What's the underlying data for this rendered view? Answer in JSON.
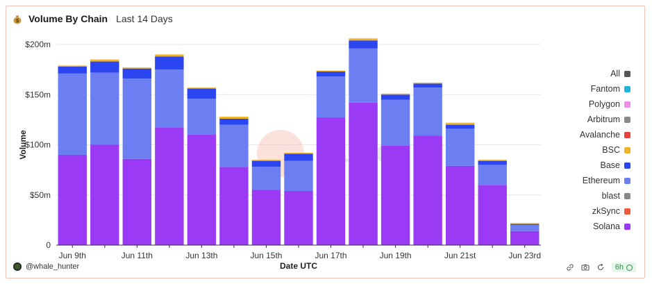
{
  "header": {
    "title": "Volume By Chain",
    "subtitle": "Last 14 Days",
    "icon": "money-bag-icon"
  },
  "watermark": "Dune",
  "author": "@whale_hunter",
  "refresh_badge": "6h",
  "legend": [
    {
      "label": "All",
      "color": "#555555"
    },
    {
      "label": "Fantom",
      "color": "#1fb4d8"
    },
    {
      "label": "Polygon",
      "color": "#ee8de6"
    },
    {
      "label": "Arbitrum",
      "color": "#8a8a8a"
    },
    {
      "label": "Avalanche",
      "color": "#e8413b"
    },
    {
      "label": "BSC",
      "color": "#f0b323"
    },
    {
      "label": "Base",
      "color": "#2b45f0"
    },
    {
      "label": "Ethereum",
      "color": "#6b7ff2"
    },
    {
      "label": "blast",
      "color": "#888888"
    },
    {
      "label": "zkSync",
      "color": "#ee5a3c"
    },
    {
      "label": "Solana",
      "color": "#9a3af5"
    }
  ],
  "chart_data": {
    "type": "bar",
    "stacked": true,
    "xlabel": "Date UTC",
    "ylabel": "Volume",
    "ylim": [
      0,
      200000000
    ],
    "y_ticks": [
      "0",
      "$50m",
      "$100m",
      "$150m",
      "$200m"
    ],
    "x_ticks": [
      "Jun 9th",
      "Jun 11th",
      "Jun 13th",
      "Jun 15th",
      "Jun 17th",
      "Jun 19th",
      "Jun 21st",
      "Jun 23rd"
    ],
    "categories": [
      "Jun 9th",
      "Jun 10th",
      "Jun 11th",
      "Jun 12th",
      "Jun 13th",
      "Jun 14th",
      "Jun 15th",
      "Jun 16th",
      "Jun 17th",
      "Jun 18th",
      "Jun 19th",
      "Jun 20th",
      "Jun 21st",
      "Jun 22nd",
      "Jun 23rd"
    ],
    "series": [
      {
        "name": "Solana",
        "color": "#9a3af5",
        "values": [
          90,
          100,
          86,
          117,
          110,
          78,
          55,
          54,
          127,
          142,
          99,
          109,
          79,
          60,
          14
        ]
      },
      {
        "name": "Ethereum",
        "color": "#6b7ff2",
        "values": [
          81,
          72,
          80,
          58,
          36,
          42,
          23,
          30,
          41,
          54,
          46,
          48,
          37,
          20,
          6
        ]
      },
      {
        "name": "Base",
        "color": "#2b45f0",
        "values": [
          7,
          11,
          10,
          13,
          10,
          6,
          6,
          7,
          5,
          8,
          5,
          4,
          4,
          4,
          1
        ]
      },
      {
        "name": "BSC",
        "color": "#f0b323",
        "values": [
          1,
          2,
          1,
          2,
          1,
          2,
          1,
          1,
          1,
          2,
          1,
          1,
          2,
          1,
          1
        ]
      }
    ],
    "grid": true,
    "legend_position": "right"
  }
}
